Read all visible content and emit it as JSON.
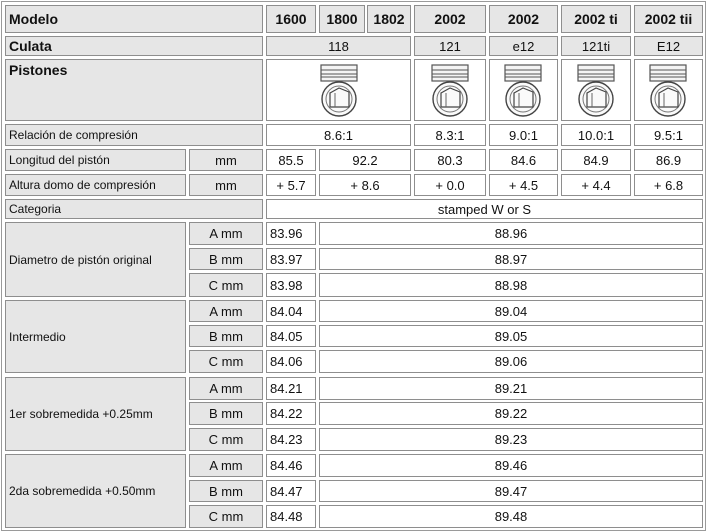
{
  "header": {
    "label": "Modelo",
    "models": [
      "1600",
      "1800",
      "1802",
      "2002",
      "2002",
      "2002 ti",
      "2002 tii"
    ]
  },
  "culata": {
    "label": "Culata",
    "values": [
      "118",
      "121",
      "e12",
      "121ti",
      "E12"
    ]
  },
  "pistones": {
    "label": "Pistones"
  },
  "compresion": {
    "label": "Relación de compresión",
    "values": [
      "8.6:1",
      "8.3:1",
      "9.0:1",
      "10.0:1",
      "9.5:1"
    ]
  },
  "longitud": {
    "label": "Longitud del pistón",
    "unit": "mm",
    "values": [
      "85.5",
      "92.2",
      "80.3",
      "84.6",
      "84.9",
      "86.9"
    ]
  },
  "altura": {
    "label": "Altura domo de compresión",
    "unit": "mm",
    "values": [
      "+ 5.7",
      "+ 8.6",
      "+ 0.0",
      "+ 4.5",
      "+ 4.4",
      "+ 6.8"
    ]
  },
  "categoria": {
    "label": "Categoria",
    "value": "stamped W or S"
  },
  "diametros": [
    {
      "label": "Diametro de pistón original",
      "sizes": [
        {
          "unit": "A mm",
          "small": "83.96",
          "large": "88.96"
        },
        {
          "unit": "B mm",
          "small": "83.97",
          "large": "88.97"
        },
        {
          "unit": "C mm",
          "small": "83.98",
          "large": "88.98"
        }
      ]
    },
    {
      "label": "Intermedio",
      "sizes": [
        {
          "unit": "A mm",
          "small": "84.04",
          "large": "89.04"
        },
        {
          "unit": "B mm",
          "small": "84.05",
          "large": "89.05"
        },
        {
          "unit": "C mm",
          "small": "84.06",
          "large": "89.06"
        }
      ]
    },
    {
      "label": "1er sobremedida +0.25mm",
      "sizes": [
        {
          "unit": "A mm",
          "small": "84.21",
          "large": "89.21"
        },
        {
          "unit": "B mm",
          "small": "84.22",
          "large": "89.22"
        },
        {
          "unit": "C mm",
          "small": "84.23",
          "large": "89.23"
        }
      ]
    },
    {
      "label": "2da sobremedida +0.50mm",
      "sizes": [
        {
          "unit": "A mm",
          "small": "84.46",
          "large": "89.46"
        },
        {
          "unit": "B mm",
          "small": "84.47",
          "large": "89.47"
        },
        {
          "unit": "C mm",
          "small": "84.48",
          "large": "89.48"
        }
      ]
    }
  ]
}
